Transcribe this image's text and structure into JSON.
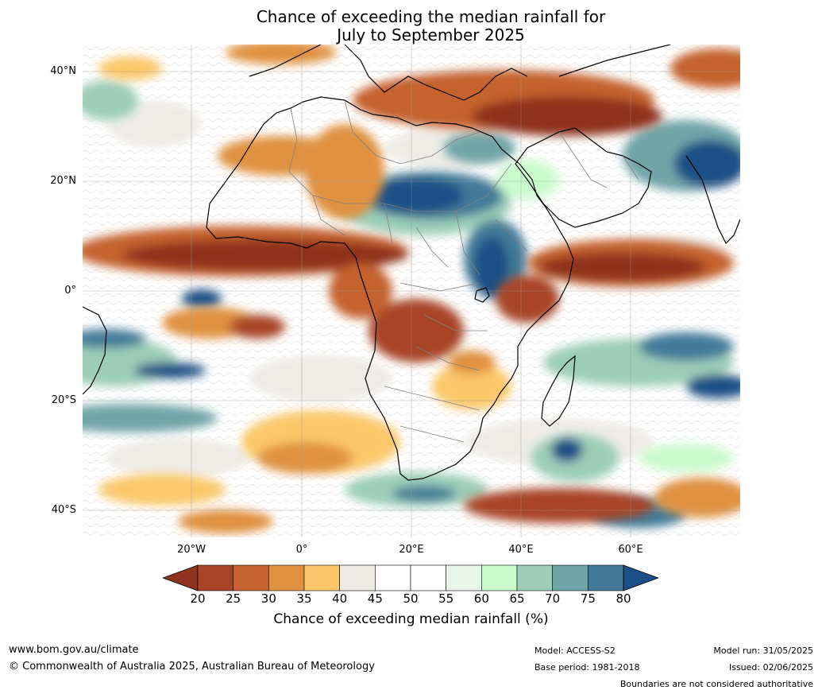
{
  "title": {
    "line1": "Chance of exceeding the median rainfall for",
    "line2": "July to September 2025"
  },
  "map": {
    "region": "Africa",
    "lat_labels": [
      "40°N",
      "20°N",
      "0°",
      "20°S",
      "40°S"
    ],
    "lon_labels": [
      "20°W",
      "0°",
      "20°E",
      "40°E",
      "60°E"
    ],
    "grid": true
  },
  "colorbar": {
    "ticks": [
      "20",
      "25",
      "30",
      "35",
      "40",
      "45",
      "50",
      "55",
      "60",
      "65",
      "70",
      "75",
      "80"
    ],
    "colors": [
      "#8f321f",
      "#a94427",
      "#c5622f",
      "#e0913f",
      "#fbc76a",
      "#eeebe6",
      "#ffffff",
      "#ffffff",
      "#e8f6e8",
      "#c9fbcd",
      "#9bcdb8",
      "#6fa4a8",
      "#437a99",
      "#1d4f86"
    ],
    "label": "Chance of exceeding median rainfall (%)"
  },
  "footer": {
    "website": "www.bom.gov.au/climate",
    "copyright": "© Commonwealth of Australia 2025, Australian Bureau of Meteorology",
    "model": "Model: ACCESS-S2",
    "base_period": "Base period: 1981-2018",
    "model_run": "Model run: 31/05/2025",
    "issued": "Issued: 02/06/2025",
    "disclaimer": "Boundaries are not considered authoritative"
  }
}
